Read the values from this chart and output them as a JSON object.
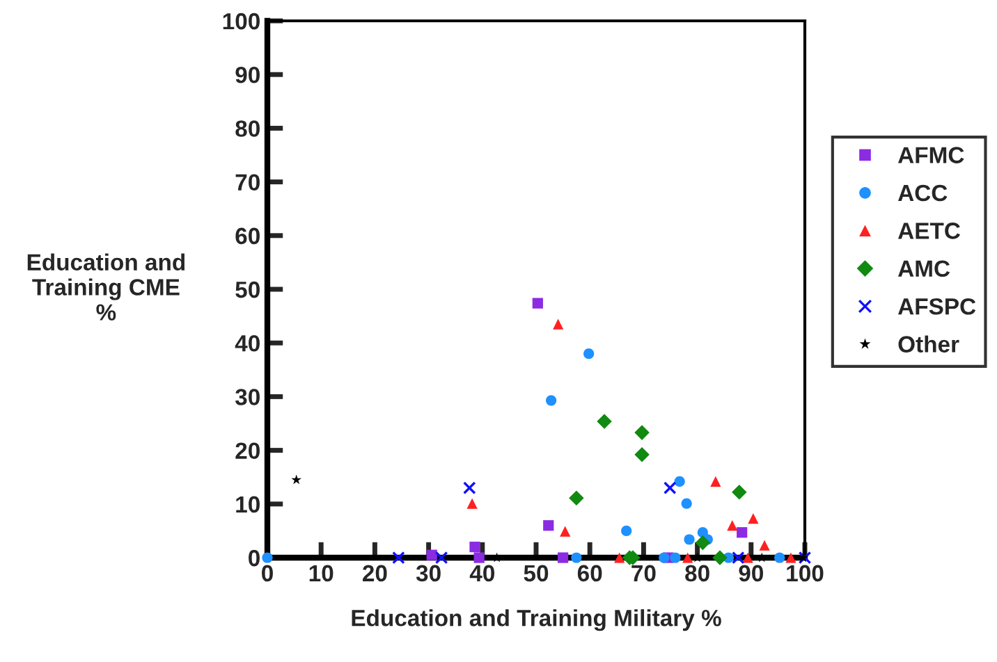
{
  "chart_data": {
    "type": "scatter",
    "xlabel": "Education and Training Military %",
    "ylabel": "Education and Training CME %",
    "xlim": [
      0,
      100
    ],
    "ylim": [
      0,
      100
    ],
    "xticks": [
      0,
      10,
      20,
      30,
      40,
      50,
      60,
      70,
      80,
      90,
      100
    ],
    "yticks": [
      0,
      10,
      20,
      30,
      40,
      50,
      60,
      70,
      80,
      90,
      100
    ],
    "grid": false,
    "legend": "right",
    "series": [
      {
        "name": "AFMC",
        "color": "#8b2be2",
        "marker": "square",
        "x": [
          50.3,
          52.3,
          55,
          30.6,
          38.6,
          39.4,
          88.3,
          74.6
        ],
        "values": [
          47.4,
          6,
          0,
          0.5,
          2,
          0,
          4.7,
          0
        ]
      },
      {
        "name": "ACC",
        "color": "#1e90ff",
        "marker": "circle",
        "x": [
          0,
          59.8,
          52.8,
          66.8,
          57.5,
          76.7,
          78,
          78.5,
          81,
          81.9,
          73.8,
          75.9,
          85.8,
          95.3
        ],
        "values": [
          0,
          38,
          29.3,
          5,
          0,
          14.2,
          10.1,
          3.4,
          4.7,
          3.4,
          0,
          0,
          0,
          0
        ]
      },
      {
        "name": "AETC",
        "color": "#ff2020",
        "marker": "triangle",
        "x": [
          54.1,
          38.1,
          55.4,
          83.4,
          86.5,
          90.4,
          92.5,
          65.5,
          78.2,
          89.4,
          97.4
        ],
        "values": [
          43.5,
          10.1,
          4.9,
          14.2,
          6,
          7.3,
          2.3,
          0,
          0,
          0,
          0
        ]
      },
      {
        "name": "AMC",
        "color": "#108a10",
        "marker": "diamond",
        "x": [
          62.7,
          69.7,
          69.7,
          57.5,
          87.8,
          81,
          67.4,
          68,
          84.2
        ],
        "values": [
          25.4,
          23.3,
          19.2,
          11.1,
          12.2,
          2.8,
          0,
          0,
          0
        ]
      },
      {
        "name": "AFSPC",
        "color": "#1010ff",
        "marker": "cross",
        "x": [
          37.6,
          74.9,
          24.4,
          32.4,
          87.6,
          100
        ],
        "values": [
          13,
          13,
          0,
          0,
          0,
          0
        ]
      },
      {
        "name": "Other",
        "color": "#000000",
        "marker": "star",
        "x": [
          5.4,
          42.7,
          80,
          92,
          99.7
        ],
        "values": [
          14.5,
          0,
          0,
          0,
          0
        ]
      }
    ]
  }
}
